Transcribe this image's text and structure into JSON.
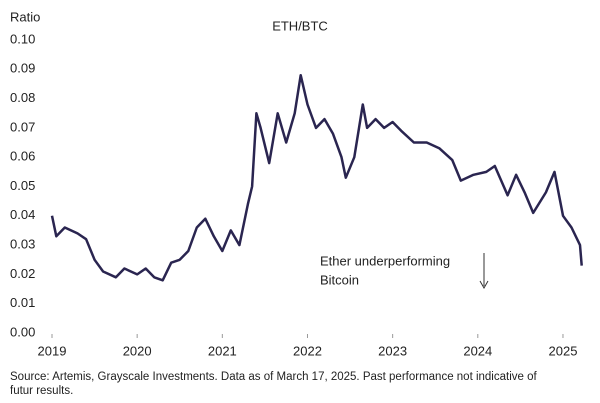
{
  "chart_data": {
    "type": "line",
    "title": "ETH/BTC",
    "y_label": "Ratio",
    "annotation": [
      "Ether underperforming",
      "Bitcoin"
    ],
    "source": [
      "Source: Artemis, Grayscale Investments. Data as of March 17, 2025. Past performance not indicative of",
      "futur results."
    ],
    "xlim": [
      2019,
      2025.2
    ],
    "xticks": [
      2019,
      2020,
      2021,
      2022,
      2023,
      2024,
      2025
    ],
    "ylim": [
      0,
      0.1
    ],
    "yticks": [
      {
        "value": 0,
        "label": "0.00"
      },
      0.01,
      0.02,
      0.03,
      0.04,
      0.05,
      0.06,
      0.07,
      0.08,
      0.09,
      {
        "value": 0.1,
        "label": "0.10"
      }
    ],
    "grid": false,
    "series": [
      {
        "name": "ETH/BTC",
        "color": "#2a2550",
        "x": [
          2019.0,
          2019.05,
          2019.15,
          2019.3,
          2019.4,
          2019.5,
          2019.6,
          2019.75,
          2019.85,
          2020.0,
          2020.1,
          2020.2,
          2020.3,
          2020.4,
          2020.5,
          2020.6,
          2020.7,
          2020.8,
          2020.9,
          2021.0,
          2021.1,
          2021.2,
          2021.3,
          2021.35,
          2021.4,
          2021.45,
          2021.55,
          2021.65,
          2021.75,
          2021.85,
          2021.92,
          2022.0,
          2022.1,
          2022.2,
          2022.3,
          2022.4,
          2022.45,
          2022.55,
          2022.65,
          2022.7,
          2022.8,
          2022.9,
          2023.0,
          2023.1,
          2023.25,
          2023.4,
          2023.55,
          2023.7,
          2023.8,
          2023.95,
          2024.1,
          2024.2,
          2024.35,
          2024.45,
          2024.55,
          2024.65,
          2024.8,
          2024.9,
          2025.0,
          2025.1,
          2025.2,
          2025.22
        ],
        "values": [
          0.04,
          0.033,
          0.036,
          0.034,
          0.032,
          0.025,
          0.021,
          0.019,
          0.022,
          0.02,
          0.022,
          0.019,
          0.018,
          0.024,
          0.025,
          0.028,
          0.036,
          0.039,
          0.033,
          0.028,
          0.035,
          0.03,
          0.044,
          0.05,
          0.075,
          0.07,
          0.058,
          0.075,
          0.065,
          0.075,
          0.088,
          0.078,
          0.07,
          0.073,
          0.068,
          0.06,
          0.053,
          0.06,
          0.078,
          0.07,
          0.073,
          0.07,
          0.072,
          0.069,
          0.065,
          0.065,
          0.063,
          0.059,
          0.052,
          0.054,
          0.055,
          0.057,
          0.047,
          0.054,
          0.048,
          0.041,
          0.048,
          0.055,
          0.04,
          0.036,
          0.03,
          0.023
        ]
      }
    ]
  }
}
